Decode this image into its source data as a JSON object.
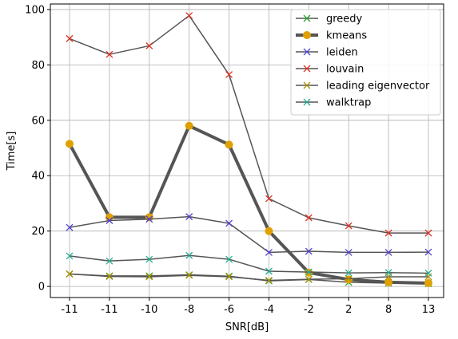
{
  "chart_data": {
    "type": "line",
    "title": "",
    "xlabel": "SNR[dB]",
    "ylabel": "Time[s]",
    "categories": [
      "-11",
      "-11",
      "-10",
      "-8",
      "-6",
      "-4",
      "-2",
      "2",
      "8",
      "13"
    ],
    "ylim": [
      -4,
      102
    ],
    "yticks": [
      0,
      20,
      40,
      60,
      80,
      100
    ],
    "grid": true,
    "legend_position": "top-right",
    "line_color": "#555555",
    "series": [
      {
        "name": "greedy",
        "marker": "x",
        "marker_color": "#2ca02c",
        "line_width": 1.5,
        "values": [
          4.5,
          3.8,
          3.8,
          4.2,
          3.7,
          2.0,
          2.5,
          1.5,
          1.2,
          1.0
        ]
      },
      {
        "name": "kmeans",
        "marker": "o",
        "marker_color": "#e0a000",
        "line_width": 4,
        "values": [
          51.5,
          25.0,
          25.0,
          58.0,
          51.2,
          20.0,
          5.0,
          2.5,
          1.5,
          1.2
        ]
      },
      {
        "name": "leiden",
        "marker": "x",
        "marker_color": "#5040d0",
        "line_width": 1.5,
        "values": [
          21.3,
          23.8,
          24.3,
          25.2,
          22.8,
          12.3,
          12.7,
          12.3,
          12.3,
          12.4
        ]
      },
      {
        "name": "louvain",
        "marker": "x",
        "marker_color": "#e03020",
        "line_width": 1.5,
        "values": [
          89.5,
          83.8,
          86.9,
          97.8,
          76.5,
          31.7,
          24.8,
          21.9,
          19.3,
          19.3
        ]
      },
      {
        "name": "leading eigenvector",
        "marker": "x",
        "marker_color": "#b09000",
        "line_width": 1.5,
        "values": [
          4.5,
          3.6,
          3.5,
          4.0,
          3.5,
          2.2,
          2.6,
          2.8,
          3.5,
          3.5
        ]
      },
      {
        "name": "walktrap",
        "marker": "x",
        "marker_color": "#20b090",
        "line_width": 1.5,
        "values": [
          11.0,
          9.2,
          9.8,
          11.2,
          9.8,
          5.5,
          5.2,
          4.9,
          5.0,
          4.8
        ]
      }
    ]
  }
}
